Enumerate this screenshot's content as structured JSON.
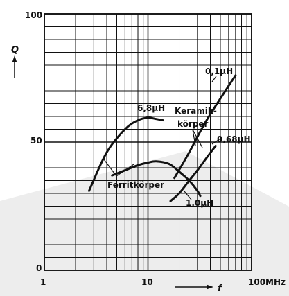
{
  "chart_data": {
    "type": "line",
    "title": "",
    "x": {
      "label": "f",
      "scale": "log",
      "range": [
        1,
        100
      ],
      "ticks": [
        "1",
        "10",
        "100MHz"
      ]
    },
    "y": {
      "label": "Q",
      "scale": "linear",
      "range": [
        0,
        100
      ],
      "ticks": [
        "0",
        "50",
        "100"
      ]
    },
    "grid": true,
    "series": [
      {
        "name": "6,8µH",
        "points": [
          [
            2.7,
            31
          ],
          [
            4,
            46
          ],
          [
            6,
            55
          ],
          [
            8,
            58.5
          ],
          [
            10,
            59.5
          ],
          [
            12,
            59
          ],
          [
            14,
            58.5
          ]
        ]
      },
      {
        "name": "1,0µH",
        "points": [
          [
            4.5,
            37
          ],
          [
            6,
            39
          ],
          [
            8,
            41
          ],
          [
            10,
            42
          ],
          [
            12,
            42.5
          ],
          [
            16,
            41.5
          ],
          [
            20,
            38.5
          ],
          [
            25,
            35
          ],
          [
            30,
            31
          ],
          [
            32,
            29
          ]
        ]
      },
      {
        "name": "0,1µH",
        "points": [
          [
            18,
            36
          ],
          [
            25,
            46
          ],
          [
            35,
            57
          ],
          [
            50,
            67
          ],
          [
            70,
            76
          ]
        ]
      },
      {
        "name": "0,68µH",
        "points": [
          [
            16.5,
            27
          ],
          [
            20,
            30
          ],
          [
            25,
            35
          ],
          [
            30,
            39
          ],
          [
            37,
            44
          ],
          [
            45,
            48.5
          ]
        ]
      }
    ],
    "annotations": [
      {
        "text": "6,8µH"
      },
      {
        "text": "1,0µH"
      },
      {
        "text": "0,1µH"
      },
      {
        "text": "0,68µH"
      },
      {
        "text": "Keramik-"
      },
      {
        "text": "körper"
      },
      {
        "text": "Ferritkörper"
      }
    ]
  },
  "watermark": {
    "color": "#ededed"
  }
}
